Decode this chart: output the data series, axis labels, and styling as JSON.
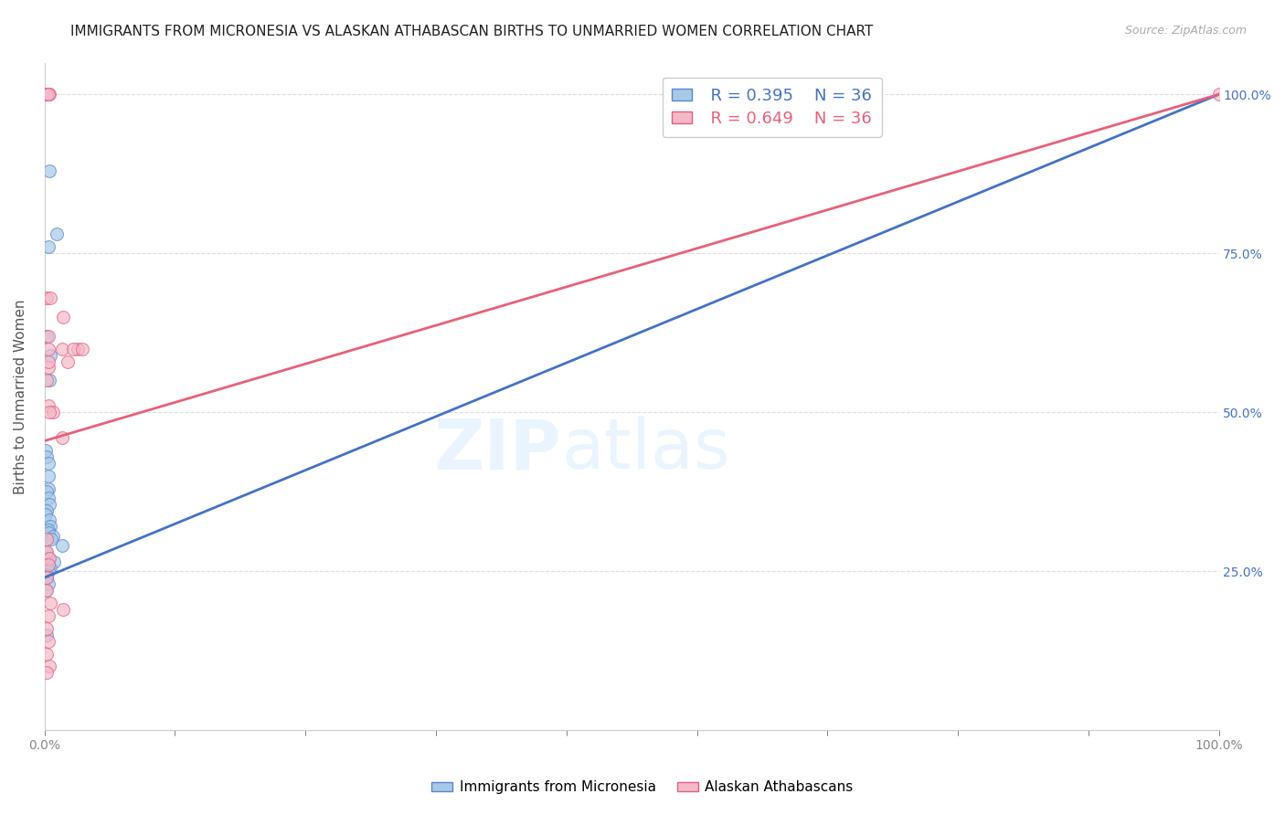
{
  "title": "IMMIGRANTS FROM MICRONESIA VS ALASKAN ATHABASCAN BIRTHS TO UNMARRIED WOMEN CORRELATION CHART",
  "source": "Source: ZipAtlas.com",
  "ylabel": "Births to Unmarried Women",
  "watermark_zip": "ZIP",
  "watermark_atlas": "atlas",
  "blue_label": "Immigrants from Micronesia",
  "pink_label": "Alaskan Athabascans",
  "blue_R": "R = 0.395",
  "blue_N": "N = 36",
  "pink_R": "R = 0.649",
  "pink_N": "N = 36",
  "blue_color": "#a8c8e8",
  "pink_color": "#f5b8c8",
  "blue_edge_color": "#5588cc",
  "pink_edge_color": "#e06080",
  "blue_line_color": "#4472c4",
  "pink_line_color": "#e8607a",
  "ytick_labels": [
    "25.0%",
    "50.0%",
    "75.0%",
    "100.0%"
  ],
  "ytick_values": [
    0.25,
    0.5,
    0.75,
    1.0
  ],
  "xtick_labels": [
    "0.0%",
    "",
    "",
    "",
    "",
    "",
    "",
    "",
    "",
    "100.0%"
  ],
  "xtick_values": [
    0.0,
    0.1111,
    0.2222,
    0.3333,
    0.4444,
    0.5556,
    0.6667,
    0.7778,
    0.8889,
    1.0
  ],
  "blue_scatter_x": [
    0.001,
    0.004,
    0.01,
    0.003,
    0.002,
    0.005,
    0.004,
    0.001,
    0.002,
    0.003,
    0.003,
    0.003,
    0.002,
    0.003,
    0.004,
    0.002,
    0.001,
    0.004,
    0.005,
    0.003,
    0.003,
    0.007,
    0.006,
    0.015,
    0.001,
    0.003,
    0.008,
    0.002,
    0.005,
    0.003,
    0.002,
    0.002,
    0.003,
    0.001,
    0.002,
    0.003
  ],
  "blue_scatter_y": [
    1.0,
    0.88,
    0.78,
    0.76,
    0.62,
    0.59,
    0.55,
    0.44,
    0.43,
    0.42,
    0.4,
    0.38,
    0.375,
    0.365,
    0.355,
    0.345,
    0.34,
    0.33,
    0.32,
    0.315,
    0.31,
    0.305,
    0.3,
    0.29,
    0.28,
    0.27,
    0.265,
    0.26,
    0.255,
    0.25,
    0.245,
    0.24,
    0.23,
    0.22,
    0.15,
    1.0
  ],
  "pink_scatter_x": [
    0.002,
    0.004,
    0.002,
    0.003,
    0.002,
    0.005,
    0.003,
    0.007,
    0.015,
    0.02,
    0.003,
    0.002,
    0.004,
    0.015,
    0.016,
    0.028,
    0.024,
    0.032,
    1.0,
    0.002,
    0.002,
    0.004,
    0.003,
    0.002,
    0.002,
    0.005,
    0.016,
    0.003,
    0.002,
    0.003,
    0.002,
    0.004,
    0.002,
    0.003,
    0.003,
    0.003
  ],
  "pink_scatter_y": [
    1.0,
    1.0,
    1.0,
    1.0,
    0.68,
    0.68,
    0.51,
    0.5,
    0.6,
    0.58,
    0.57,
    0.55,
    0.5,
    0.46,
    0.65,
    0.6,
    0.6,
    0.6,
    1.0,
    0.3,
    0.28,
    0.27,
    0.26,
    0.24,
    0.22,
    0.2,
    0.19,
    0.18,
    0.16,
    0.14,
    0.12,
    0.1,
    0.09,
    0.62,
    0.58,
    0.6
  ],
  "blue_line_x0": 0.0,
  "blue_line_y0": 0.24,
  "blue_line_x1": 1.0,
  "blue_line_y1": 1.0,
  "pink_line_x0": 0.0,
  "pink_line_y0": 0.455,
  "pink_line_x1": 1.0,
  "pink_line_y1": 1.0,
  "grid_color": "#dddddd",
  "title_fontsize": 11,
  "axis_label_fontsize": 11,
  "tick_fontsize": 10,
  "marker_size": 100,
  "xmin": 0.0,
  "xmax": 1.0,
  "ymin": 0.0,
  "ymax": 1.05
}
